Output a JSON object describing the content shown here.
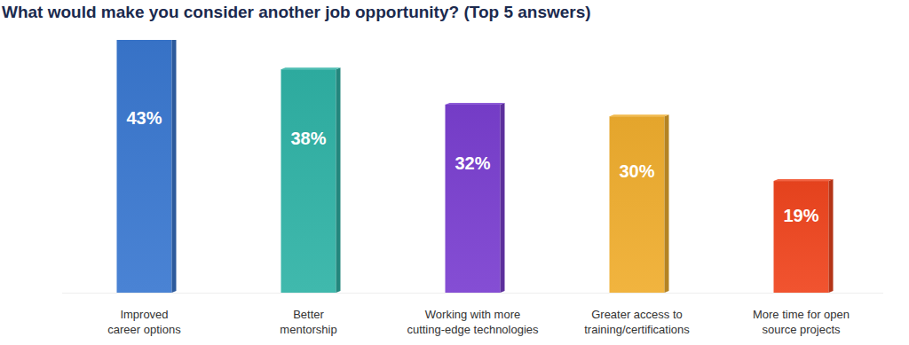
{
  "chart_data": {
    "type": "bar",
    "title": "What would make you consider another job opportunity? (Top 5 answers)",
    "categories": [
      "Improved career options",
      "Better mentorship",
      "Working with more cutting-edge technologies",
      "Greater access to training/certifications",
      "More time for open source projects"
    ],
    "values": [
      43,
      38,
      32,
      30,
      19
    ],
    "value_labels": [
      "43%",
      "38%",
      "32%",
      "30%",
      "19%"
    ],
    "colors": [
      "#3a78d0",
      "#2fb3a6",
      "#7a3fd0",
      "#f0ae2e",
      "#f0451e"
    ],
    "ylim": [
      0,
      43
    ],
    "data_labels": true,
    "tick_labels": false,
    "grid": false
  }
}
